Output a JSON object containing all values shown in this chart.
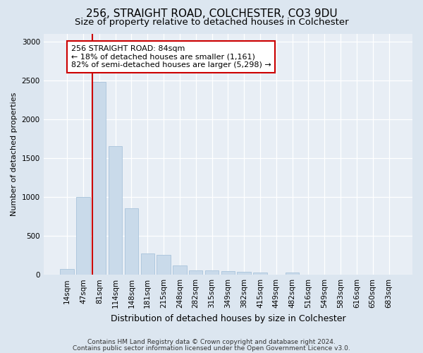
{
  "title1": "256, STRAIGHT ROAD, COLCHESTER, CO3 9DU",
  "title2": "Size of property relative to detached houses in Colchester",
  "xlabel": "Distribution of detached houses by size in Colchester",
  "ylabel": "Number of detached properties",
  "categories": [
    "14sqm",
    "47sqm",
    "81sqm",
    "114sqm",
    "148sqm",
    "181sqm",
    "215sqm",
    "248sqm",
    "282sqm",
    "315sqm",
    "349sqm",
    "382sqm",
    "415sqm",
    "449sqm",
    "482sqm",
    "516sqm",
    "549sqm",
    "583sqm",
    "616sqm",
    "650sqm",
    "683sqm"
  ],
  "values": [
    75,
    1000,
    2480,
    1650,
    850,
    270,
    255,
    120,
    60,
    55,
    50,
    40,
    30,
    0,
    25,
    0,
    0,
    0,
    0,
    0,
    0
  ],
  "bar_color": "#c9daea",
  "bar_edge_color": "#afc8de",
  "line_color": "#cc0000",
  "line_bar_index": 2,
  "annotation_text": "256 STRAIGHT ROAD: 84sqm\n← 18% of detached houses are smaller (1,161)\n82% of semi-detached houses are larger (5,298) →",
  "box_facecolor": "#ffffff",
  "box_edgecolor": "#cc0000",
  "ylim": [
    0,
    3100
  ],
  "yticks": [
    0,
    500,
    1000,
    1500,
    2000,
    2500,
    3000
  ],
  "bg_color": "#dce6f0",
  "plot_bg_color": "#e8eef5",
  "footer1": "Contains HM Land Registry data © Crown copyright and database right 2024.",
  "footer2": "Contains public sector information licensed under the Open Government Licence v3.0.",
  "title1_fontsize": 11,
  "title2_fontsize": 9.5,
  "xlabel_fontsize": 9,
  "ylabel_fontsize": 8,
  "tick_fontsize": 7.5,
  "annotation_fontsize": 8,
  "footer_fontsize": 6.5
}
